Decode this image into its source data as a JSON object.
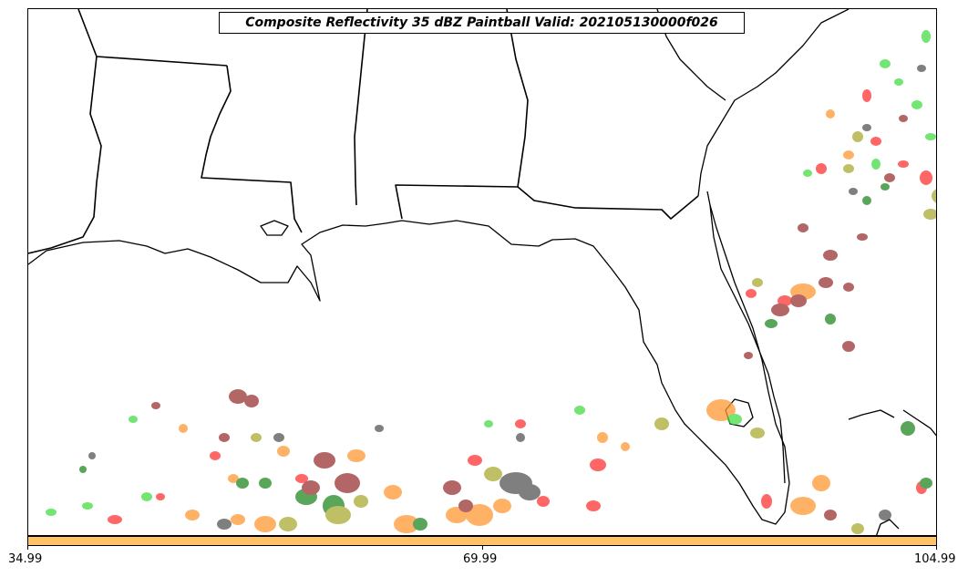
{
  "title": "Composite Reflectivity 35 dBZ Paintball Valid: 202105130000f026",
  "colorbar": {
    "color": "#ffc266",
    "ticks": [
      "34.99",
      "69.99",
      "104.99"
    ]
  },
  "map": {
    "coastline_color": "#000000",
    "region": "Southeastern United States and Gulf of Mexico"
  },
  "chart_data": {
    "type": "map",
    "title": "Composite Reflectivity 35 dBZ Paintball Valid: 202105130000f026",
    "member_colors": [
      "#ff3333",
      "#ff9933",
      "#44dd44",
      "#228822",
      "#993333",
      "#aaaa33",
      "#555555",
      "#ffaa44"
    ],
    "colorbar_range": [
      34.99,
      104.99
    ]
  }
}
